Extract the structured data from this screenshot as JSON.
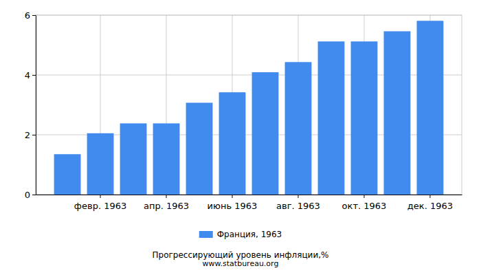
{
  "chart_data": {
    "type": "bar",
    "title": "Прогрессирующий уровень инфляции,%",
    "subtitle": "www.statbureau.org",
    "categories": [
      null,
      "февр. 1963",
      null,
      "апр. 1963",
      null,
      "июнь 1963",
      null,
      "авг. 1963",
      null,
      "окт. 1963",
      null,
      "дек. 1963"
    ],
    "series": [
      {
        "name": "Франция, 1963",
        "color": "#418bee",
        "values": [
          1.35,
          2.05,
          2.38,
          2.38,
          3.07,
          3.42,
          4.09,
          4.43,
          5.12,
          5.12,
          5.46,
          5.81
        ]
      }
    ],
    "ylim": [
      0,
      6
    ],
    "yticks": [
      0,
      2,
      4,
      6
    ],
    "grid": true,
    "legend": "bottom"
  }
}
